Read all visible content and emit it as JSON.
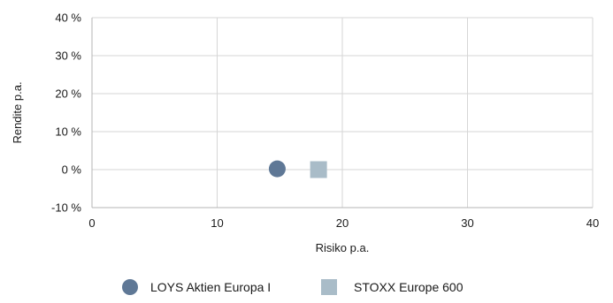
{
  "chart_data": {
    "type": "scatter",
    "xlabel": "Risiko p.a.",
    "ylabel": "Rendite p.a.",
    "xlim": [
      0,
      40
    ],
    "ylim": [
      -10,
      40
    ],
    "x_ticks": [
      "0",
      "10",
      "20",
      "30",
      "40"
    ],
    "y_ticks": [
      "-10 %",
      "0 %",
      "10 %",
      "20 %",
      "30 %",
      "40 %"
    ],
    "grid": true,
    "legend_position": "bottom-center",
    "series": [
      {
        "name": "LOYS Aktien Europa I",
        "x": 14.8,
        "y": 0.2,
        "marker": "circle",
        "color": "#5f7896"
      },
      {
        "name": "STOXX Europe 600",
        "x": 18.1,
        "y": 0.0,
        "marker": "square",
        "color": "#a9bcc8"
      }
    ]
  }
}
